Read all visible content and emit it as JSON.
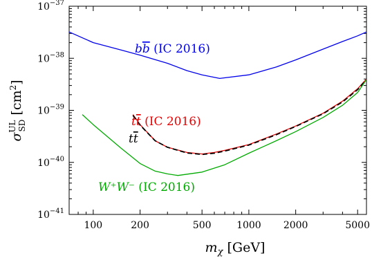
{
  "chart_data": {
    "type": "line",
    "xlabel": "m_χ [GeV]",
    "ylabel": "σ_SD^UL [cm²]",
    "xscale": "log",
    "yscale": "log",
    "xlim": [
      70,
      5700
    ],
    "ylim": [
      1e-41,
      1e-37
    ],
    "grid": false,
    "x_ticks": [
      {
        "value": 100,
        "label": "100"
      },
      {
        "value": 200,
        "label": "200"
      },
      {
        "value": 500,
        "label": "500"
      },
      {
        "value": 1000,
        "label": "1000"
      },
      {
        "value": 2000,
        "label": "2000"
      },
      {
        "value": 5000,
        "label": "5000"
      }
    ],
    "y_ticks": [
      {
        "value": 1e-41,
        "base": "10",
        "exp": "−41"
      },
      {
        "value": 1e-40,
        "base": "10",
        "exp": "−40"
      },
      {
        "value": 1e-39,
        "base": "10",
        "exp": "−39"
      },
      {
        "value": 1e-38,
        "base": "10",
        "exp": "−38"
      },
      {
        "value": 1e-37,
        "base": "10",
        "exp": "−37"
      }
    ],
    "series": [
      {
        "name": "b b̄ (IC 2016)",
        "color": "#0000ee",
        "dash": "solid",
        "x": [
          70,
          100,
          150,
          200,
          300,
          400,
          500,
          650,
          1000,
          1500,
          2000,
          3000,
          4000,
          5000,
          5700
        ],
        "y": [
          3.2e-38,
          2e-38,
          1.45e-38,
          1.15e-38,
          8e-39,
          5.8e-39,
          4.8e-39,
          4.1e-39,
          4.8e-39,
          6.8e-39,
          9.3e-39,
          1.5e-38,
          2.1e-38,
          2.7e-38,
          3.2e-38
        ]
      },
      {
        "name": "t t̄ (IC 2016)",
        "color": "#ee0000",
        "dash": "solid",
        "x": [
          180,
          200,
          250,
          300,
          400,
          500,
          600,
          700,
          1000,
          1500,
          2000,
          3000,
          4000,
          5000,
          5700
        ],
        "y": [
          8.3e-40,
          5.3e-40,
          2.6e-40,
          1.95e-40,
          1.55e-40,
          1.45e-40,
          1.55e-40,
          1.7e-40,
          2.2e-40,
          3.5e-40,
          5e-40,
          8.8e-40,
          1.5e-39,
          2.6e-39,
          4e-39
        ]
      },
      {
        "name": "t t̄",
        "color": "#000000",
        "dash": "dashed",
        "x": [
          180,
          200,
          250,
          300,
          400,
          500,
          600,
          700,
          1000,
          1500,
          2000,
          3000,
          4000,
          5000,
          5700
        ],
        "y": [
          8e-40,
          5.2e-40,
          2.6e-40,
          1.95e-40,
          1.52e-40,
          1.42e-40,
          1.5e-40,
          1.65e-40,
          2.15e-40,
          3.4e-40,
          4.9e-40,
          8.6e-40,
          1.45e-39,
          2.5e-39,
          3.9e-39
        ]
      },
      {
        "name": "W⁺W⁻ (IC 2016)",
        "color": "#00aa00",
        "dash": "solid",
        "x": [
          85,
          100,
          150,
          200,
          250,
          300,
          350,
          500,
          700,
          1000,
          1500,
          2000,
          3000,
          4000,
          5000,
          5700
        ],
        "y": [
          8.3e-40,
          5.3e-40,
          1.9e-40,
          9.5e-41,
          6.8e-41,
          6e-41,
          5.6e-41,
          6.5e-41,
          9e-41,
          1.5e-40,
          2.6e-40,
          3.9e-40,
          7.3e-40,
          1.25e-39,
          2.2e-39,
          3.9e-39
        ]
      }
    ],
    "annotations": [
      {
        "pre": "b",
        "bar": "b",
        "post": " (IC 2016)",
        "color": "#0000ee",
        "series": 0
      },
      {
        "pre": "t",
        "bar": "t",
        "post": " (IC 2016)",
        "color": "#ee0000",
        "series": 1
      },
      {
        "pre": "t",
        "bar": "t",
        "post": "",
        "color": "#000000",
        "series": 2
      },
      {
        "pre": "W⁺W⁻",
        "bar": "",
        "post": " (IC 2016)",
        "color": "#00aa00",
        "series": 3
      }
    ]
  }
}
